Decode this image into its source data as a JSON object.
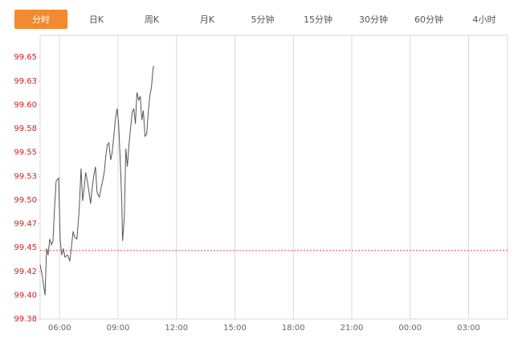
{
  "tabs": [
    "分时",
    "日K",
    "周K",
    "月K",
    "5分钟",
    "15分钟",
    "30分钟",
    "60分钟",
    "4小时"
  ],
  "active_tab": 0,
  "chart_data": {
    "type": "line",
    "color": "#555555",
    "x": [
      5.0,
      5.12,
      5.25,
      5.33,
      5.41,
      5.49,
      5.58,
      5.66,
      5.74,
      5.82,
      5.95,
      6.03,
      6.11,
      6.19,
      6.27,
      6.4,
      6.52,
      6.6,
      6.69,
      6.77,
      6.89,
      7.01,
      7.1,
      7.18,
      7.26,
      7.34,
      7.42,
      7.51,
      7.59,
      7.67,
      7.75,
      7.84,
      7.92,
      8.04,
      8.12,
      8.21,
      8.29,
      8.37,
      8.45,
      8.53,
      8.62,
      8.7,
      8.78,
      8.86,
      8.95,
      9.03,
      9.11,
      9.19,
      9.23,
      9.32,
      9.4,
      9.48,
      9.56,
      9.64,
      9.73,
      9.81,
      9.89,
      9.97,
      10.06,
      10.14,
      10.22,
      10.3,
      10.38,
      10.47,
      10.55,
      10.63,
      10.71,
      10.8,
      10.84
    ],
    "values": [
      99.432,
      99.419,
      99.4,
      99.449,
      99.442,
      99.459,
      99.453,
      99.457,
      99.491,
      99.52,
      99.523,
      99.457,
      99.442,
      99.449,
      99.44,
      99.442,
      99.436,
      99.449,
      99.467,
      99.461,
      99.459,
      99.491,
      99.533,
      99.499,
      99.512,
      99.529,
      99.52,
      99.508,
      99.496,
      99.512,
      99.525,
      99.535,
      99.508,
      99.503,
      99.512,
      99.52,
      99.529,
      99.546,
      99.558,
      99.56,
      99.542,
      99.55,
      99.567,
      99.584,
      99.596,
      99.58,
      99.542,
      99.499,
      99.457,
      99.482,
      99.554,
      99.535,
      99.558,
      99.575,
      99.592,
      99.596,
      99.58,
      99.613,
      99.605,
      99.609,
      99.584,
      99.594,
      99.567,
      99.569,
      99.592,
      99.609,
      99.618,
      99.639,
      99.641
    ],
    "ref_line": 99.447,
    "ref_color": "#e05050",
    "xlim": [
      5,
      29
    ],
    "xticks": [
      {
        "value": 6,
        "label": "06:00"
      },
      {
        "value": 9,
        "label": "09:00"
      },
      {
        "value": 12,
        "label": "12:00"
      },
      {
        "value": 15,
        "label": "15:00"
      },
      {
        "value": 18,
        "label": "18:00"
      },
      {
        "value": 21,
        "label": "21:00"
      },
      {
        "value": 24,
        "label": "00:00"
      },
      {
        "value": 27,
        "label": "03:00"
      }
    ],
    "ylim": [
      99.375,
      99.673
    ],
    "yticks": [
      {
        "value": 99.375,
        "label": "99.38"
      },
      {
        "value": 99.4,
        "label": "99.40"
      },
      {
        "value": 99.425,
        "label": "99.42"
      },
      {
        "value": 99.45,
        "label": "99.45"
      },
      {
        "value": 99.475,
        "label": "99.47"
      },
      {
        "value": 99.5,
        "label": "99.50"
      },
      {
        "value": 99.525,
        "label": "99.53"
      },
      {
        "value": 99.55,
        "label": "99.55"
      },
      {
        "value": 99.575,
        "label": "99.58"
      },
      {
        "value": 99.6,
        "label": "99.60"
      },
      {
        "value": 99.625,
        "label": "99.63"
      },
      {
        "value": 99.65,
        "label": "99.65"
      }
    ],
    "grid": "x"
  }
}
